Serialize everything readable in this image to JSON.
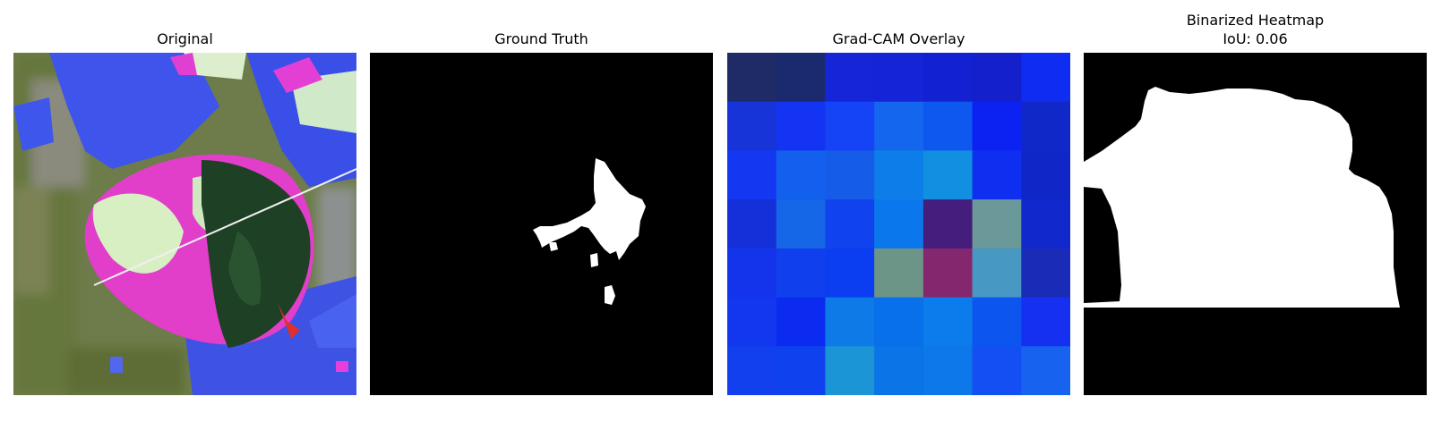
{
  "panels": [
    {
      "title": "Original"
    },
    {
      "title": "Ground Truth"
    },
    {
      "title": "Grad-CAM Overlay"
    },
    {
      "title": "Binarized Heatmap",
      "subtitle": "IoU: 0.06"
    }
  ],
  "gradcam_grid": [
    [
      "#1f2b66",
      "#1b2a6e",
      "#1426d8",
      "#1424d6",
      "#1222d2",
      "#1320cc",
      "#0f2df0"
    ],
    [
      "#1634d8",
      "#1434f4",
      "#1543f6",
      "#1566ee",
      "#0f58ef",
      "#0c22f2",
      "#1028c8"
    ],
    [
      "#1437f2",
      "#1360ef",
      "#155ce8",
      "#0c7de9",
      "#128fe0",
      "#0e2ff0",
      "#1126c6"
    ],
    [
      "#1530d8",
      "#1567e8",
      "#1043ee",
      "#0a78ec",
      "#451d7c",
      "#6b9999",
      "#1128cc"
    ],
    [
      "#1334ea",
      "#1040ee",
      "#0b3ef0",
      "#6c9487",
      "#84276f",
      "#4799c3",
      "#1a2bb8"
    ],
    [
      "#1337ef",
      "#0b2cf0",
      "#0d7ae8",
      "#0770ea",
      "#0c7bec",
      "#0c56ef",
      "#1630f2"
    ],
    [
      "#1240ef",
      "#0f42ee",
      "#1b95d6",
      "#0b74e6",
      "#0c78ea",
      "#134ff2",
      "#1763ef"
    ]
  ]
}
